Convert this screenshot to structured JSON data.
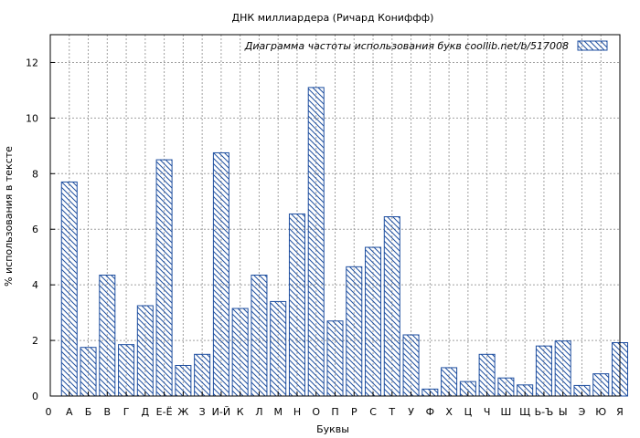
{
  "chart_data": {
    "type": "bar",
    "title": "ДНК миллиардера (Ричард Кониффф)",
    "xlabel": "Буквы",
    "ylabel": "% использования в тексте",
    "legend": {
      "label": "Диаграмма частоты использования букв  coollib.net/b/517008",
      "position": "top-right"
    },
    "ylim": [
      0,
      13
    ],
    "yticks": [
      0,
      2,
      4,
      6,
      8,
      10,
      12
    ],
    "grid": true,
    "colors": {
      "bar_stroke": "#1f4fa0",
      "hatch": "#1f4fa0",
      "grid": "#a0a0a0"
    },
    "axis_start_label": "0",
    "categories": [
      "А",
      "Б",
      "В",
      "Г",
      "Д",
      "Е-Ё",
      "Ж",
      "З",
      "И-Й",
      "К",
      "Л",
      "М",
      "Н",
      "О",
      "П",
      "Р",
      "С",
      "Т",
      "У",
      "Ф",
      "Х",
      "Ц",
      "Ч",
      "Ш",
      "Щ",
      "Ь-Ъ",
      "Ы",
      "Э",
      "Ю",
      "Я"
    ],
    "values": [
      7.7,
      1.75,
      4.35,
      1.85,
      3.25,
      8.5,
      1.1,
      1.5,
      8.75,
      3.15,
      4.35,
      3.4,
      6.55,
      11.1,
      2.7,
      4.65,
      5.35,
      6.45,
      2.2,
      0.25,
      1.02,
      0.52,
      1.5,
      0.65,
      0.4,
      1.8,
      1.98,
      0.38,
      0.8,
      1.92
    ]
  }
}
